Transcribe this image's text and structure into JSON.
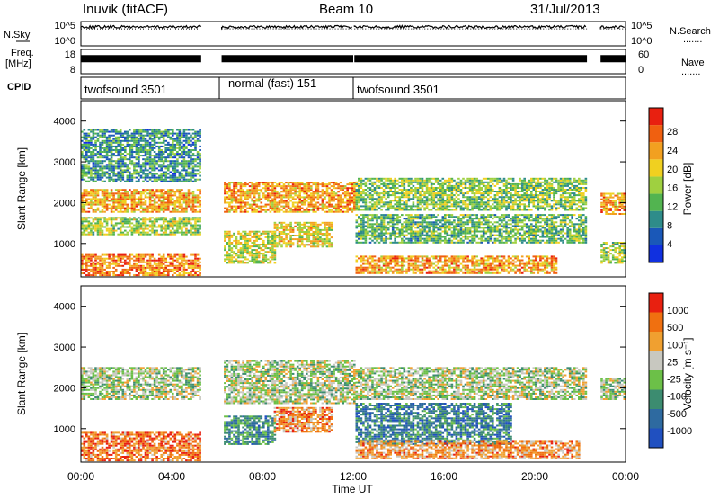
{
  "header": {
    "station": "Inuvik (fitACF)",
    "beam": "Beam 10",
    "date": "31/Jul/2013"
  },
  "side_labels": {
    "nsky": "N.Sky",
    "freq_top": "Freq.",
    "freq_unit": "[MHz]",
    "cpid": "CPID",
    "nsearch": "N.Search",
    "nave": "Nave",
    "dots": "......."
  },
  "chart_data": [
    {
      "type": "line",
      "name": "noise-panel",
      "left_ticks": [
        "10^5",
        "10^0"
      ],
      "right_ticks": [
        "10^5",
        "10^0"
      ],
      "x_range": [
        0,
        24
      ],
      "segments": [
        [
          0,
          5.3
        ],
        [
          6.2,
          12.0
        ],
        [
          12.05,
          22.3
        ],
        [
          22.9,
          24
        ]
      ],
      "n_sky_level": 0.78,
      "n_search_level": 0.7
    },
    {
      "type": "line",
      "name": "frequency-panel",
      "left_ticks": [
        "18",
        "8"
      ],
      "right_ticks": [
        "60",
        "0"
      ],
      "segments": [
        [
          0,
          5.3
        ],
        [
          6.2,
          12.0
        ],
        [
          12.05,
          22.3
        ],
        [
          22.9,
          24
        ]
      ],
      "freq_level": 0.62
    },
    {
      "type": "table",
      "name": "cpid-panel",
      "programs": [
        {
          "label": "twofsound 3501",
          "start": 0,
          "end": 6.1
        },
        {
          "label": "normal (fast) 151",
          "start": 6.1,
          "end": 12.0
        },
        {
          "label": "twofsound 3501",
          "start": 12.0,
          "end": 24
        }
      ]
    },
    {
      "type": "heatmap",
      "name": "power",
      "ylabel": "Slant Range [km]",
      "colorbar_label": "Power [dB]",
      "y_ticks": [
        1000,
        2000,
        3000,
        4000
      ],
      "ylim": [
        180,
        4500
      ],
      "colorbar_ticks": [
        "4",
        "8",
        "12",
        "16",
        "20",
        "24",
        "28"
      ],
      "colors": [
        "#1030e0",
        "#1a58b8",
        "#2e8c8a",
        "#52b450",
        "#9fd040",
        "#f0d020",
        "#f2a020",
        "#f06010",
        "#e82010"
      ],
      "regions": [
        {
          "t": [
            0,
            5.2
          ],
          "r": [
            1750,
            2300
          ],
          "lvl": 0.7
        },
        {
          "t": [
            0,
            5.2
          ],
          "r": [
            1200,
            1650
          ],
          "lvl": 0.5
        },
        {
          "t": [
            0,
            5.2
          ],
          "r": [
            200,
            700
          ],
          "lvl": 0.78
        },
        {
          "t": [
            0,
            5.2
          ],
          "r": [
            2500,
            3800
          ],
          "lvl": 0.3
        },
        {
          "t": [
            6.3,
            12
          ],
          "r": [
            1750,
            2500
          ],
          "lvl": 0.72
        },
        {
          "t": [
            6.3,
            8.5
          ],
          "r": [
            500,
            1300
          ],
          "lvl": 0.55
        },
        {
          "t": [
            8.5,
            11
          ],
          "r": [
            900,
            1500
          ],
          "lvl": 0.6
        },
        {
          "t": [
            12.1,
            22.3
          ],
          "r": [
            1800,
            2600
          ],
          "lvl": 0.45
        },
        {
          "t": [
            12.1,
            22.3
          ],
          "r": [
            1000,
            1700
          ],
          "lvl": 0.4
        },
        {
          "t": [
            12.1,
            21
          ],
          "r": [
            250,
            700
          ],
          "lvl": 0.72
        },
        {
          "t": [
            22.9,
            24
          ],
          "r": [
            1700,
            2200
          ],
          "lvl": 0.72
        },
        {
          "t": [
            22.9,
            24
          ],
          "r": [
            500,
            1000
          ],
          "lvl": 0.5
        }
      ]
    },
    {
      "type": "heatmap",
      "name": "velocity",
      "ylabel": "Slant Range [km]",
      "colorbar_label": "Velocity [m s⁻¹]",
      "xlabel": "Time UT",
      "y_ticks": [
        1000,
        2000,
        3000,
        4000
      ],
      "ylim": [
        180,
        4500
      ],
      "x_ticks": [
        "00:00",
        "04:00",
        "08:00",
        "12:00",
        "16:00",
        "20:00",
        "00:00"
      ],
      "colorbar_ticks": [
        "1000",
        "500",
        "100",
        "25",
        "-25",
        "-100",
        "-500",
        "-1000"
      ],
      "colors": [
        "#2050c0",
        "#2e6aa0",
        "#3c8c70",
        "#6cc048",
        "#c8c8c0",
        "#f0a030",
        "#f07010",
        "#e82010"
      ],
      "regions": [
        {
          "t": [
            0,
            5.2
          ],
          "r": [
            1700,
            2500
          ],
          "lvl": 0.5
        },
        {
          "t": [
            0,
            5.2
          ],
          "r": [
            200,
            900
          ],
          "lvl": 0.8
        },
        {
          "t": [
            6.3,
            12
          ],
          "r": [
            1600,
            2650
          ],
          "lvl": 0.5
        },
        {
          "t": [
            6.3,
            8.5
          ],
          "r": [
            600,
            1300
          ],
          "lvl": 0.3
        },
        {
          "t": [
            8.5,
            11
          ],
          "r": [
            900,
            1500
          ],
          "lvl": 0.75
        },
        {
          "t": [
            12.1,
            22.3
          ],
          "r": [
            1700,
            2500
          ],
          "lvl": 0.5
        },
        {
          "t": [
            12.1,
            19
          ],
          "r": [
            600,
            1600
          ],
          "lvl": 0.25
        },
        {
          "t": [
            12.1,
            22
          ],
          "r": [
            250,
            700
          ],
          "lvl": 0.72
        },
        {
          "t": [
            22.9,
            24
          ],
          "r": [
            1700,
            2200
          ],
          "lvl": 0.5
        }
      ]
    }
  ]
}
